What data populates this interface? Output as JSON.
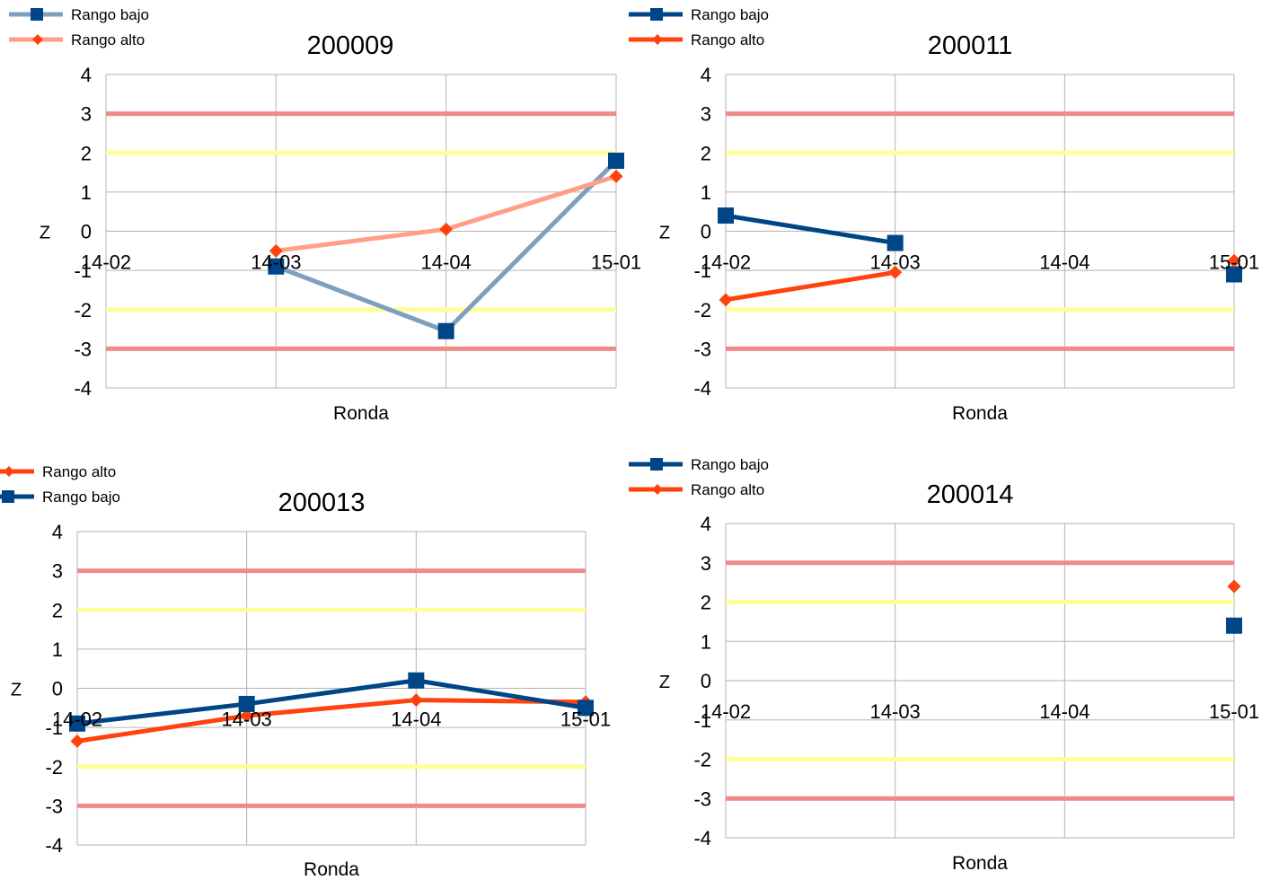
{
  "colors": {
    "rango_bajo_dark": "#004586",
    "rango_bajo_light": "#7f9fbf",
    "rango_alto_dark": "#ff420e",
    "rango_alto_light": "#ff9f86",
    "limit_3": "#f08a8a",
    "limit_2": "#ffff99",
    "grid": "#b3b3b3"
  },
  "chart_data": [
    {
      "type": "line",
      "title": "200009",
      "xlabel": "Ronda",
      "ylabel": "Z",
      "categories": [
        "14-02",
        "14-03",
        "14-04",
        "15-01"
      ],
      "ylim": [
        -4,
        4
      ],
      "yticks": [
        "4",
        "3",
        "2",
        "1",
        "0",
        "-1",
        "-2",
        "-3",
        "-4"
      ],
      "reference_lines": {
        "red": [
          3,
          -3
        ],
        "yellow": [
          2,
          -2
        ]
      },
      "legend": [
        "Rango bajo",
        "Rango alto"
      ],
      "series": [
        {
          "name": "Rango bajo",
          "marker": "square",
          "color": "#7f9fbf",
          "marker_color": "#004586",
          "values": [
            null,
            -0.9,
            -2.55,
            1.8
          ]
        },
        {
          "name": "Rango alto",
          "marker": "diamond",
          "color": "#ff9f86",
          "marker_color": "#ff420e",
          "values": [
            null,
            -0.5,
            0.05,
            1.4
          ]
        }
      ]
    },
    {
      "type": "line",
      "title": "200011",
      "xlabel": "Ronda",
      "ylabel": "Z",
      "categories": [
        "14-02",
        "14-03",
        "14-04",
        "15-01"
      ],
      "ylim": [
        -4,
        4
      ],
      "yticks": [
        "4",
        "3",
        "2",
        "1",
        "0",
        "-1",
        "-2",
        "-3",
        "-4"
      ],
      "reference_lines": {
        "red": [
          3,
          -3
        ],
        "yellow": [
          2,
          -2
        ]
      },
      "legend": [
        "Rango bajo",
        "Rango alto"
      ],
      "series": [
        {
          "name": "Rango bajo",
          "marker": "square",
          "color": "#004586",
          "marker_color": "#004586",
          "values": [
            0.4,
            -0.3,
            null,
            -1.1
          ]
        },
        {
          "name": "Rango alto",
          "marker": "diamond",
          "color": "#ff420e",
          "marker_color": "#ff420e",
          "values": [
            -1.75,
            -1.05,
            null,
            -0.75
          ]
        }
      ]
    },
    {
      "type": "line",
      "title": "200013",
      "xlabel": "Ronda",
      "ylabel": "Z",
      "categories": [
        "14-02",
        "14-03",
        "14-04",
        "15-01"
      ],
      "ylim": [
        -4,
        4
      ],
      "yticks": [
        "4",
        "3",
        "2",
        "1",
        "0",
        "-1",
        "-2",
        "-3",
        "-4"
      ],
      "reference_lines": {
        "red": [
          3,
          -3
        ],
        "yellow": [
          2,
          -2
        ]
      },
      "legend": [
        "Rango alto",
        "Rango bajo"
      ],
      "series": [
        {
          "name": "Rango alto",
          "marker": "diamond",
          "color": "#ff420e",
          "marker_color": "#ff420e",
          "values": [
            -1.35,
            -0.7,
            -0.3,
            -0.35
          ]
        },
        {
          "name": "Rango bajo",
          "marker": "square",
          "color": "#004586",
          "marker_color": "#004586",
          "values": [
            -0.9,
            -0.4,
            0.2,
            -0.5
          ]
        }
      ]
    },
    {
      "type": "line",
      "title": "200014",
      "xlabel": "Ronda",
      "ylabel": "Z",
      "categories": [
        "14-02",
        "14-03",
        "14-04",
        "15-01"
      ],
      "ylim": [
        -4,
        4
      ],
      "yticks": [
        "4",
        "3",
        "2",
        "1",
        "0",
        "-1",
        "-2",
        "-3",
        "-4"
      ],
      "reference_lines": {
        "red": [
          3,
          -3
        ],
        "yellow": [
          2,
          -2
        ]
      },
      "legend": [
        "Rango bajo",
        "Rango alto"
      ],
      "series": [
        {
          "name": "Rango bajo",
          "marker": "square",
          "color": "#004586",
          "marker_color": "#004586",
          "values": [
            null,
            null,
            null,
            1.4
          ]
        },
        {
          "name": "Rango alto",
          "marker": "diamond",
          "color": "#ff420e",
          "marker_color": "#ff420e",
          "values": [
            null,
            null,
            null,
            2.4
          ]
        }
      ]
    }
  ]
}
